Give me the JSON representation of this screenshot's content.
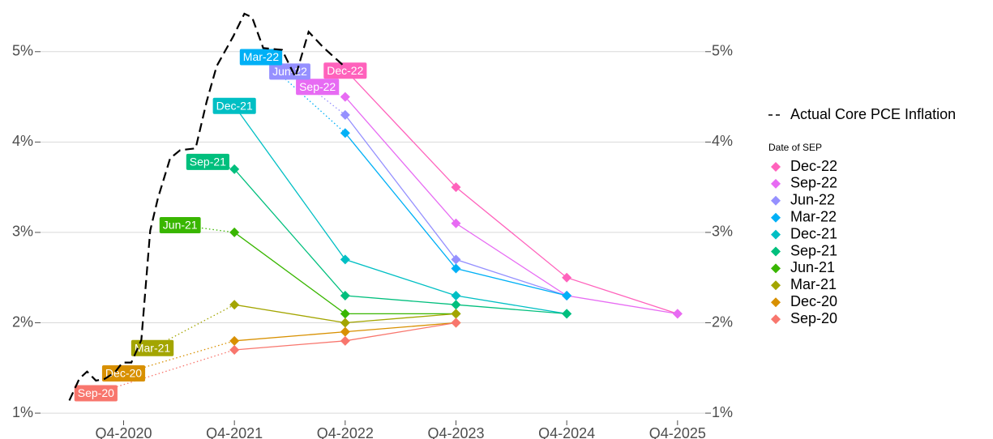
{
  "chart_data": {
    "type": "line",
    "xlim": [
      2020,
      2026
    ],
    "ylim": [
      0.92,
      5.5
    ],
    "xticks": [
      {
        "value": 2020.75,
        "label": "Q4-2020"
      },
      {
        "value": 2021.75,
        "label": "Q4-2021"
      },
      {
        "value": 2022.75,
        "label": "Q4-2022"
      },
      {
        "value": 2023.75,
        "label": "Q4-2023"
      },
      {
        "value": 2024.75,
        "label": "Q4-2024"
      },
      {
        "value": 2025.75,
        "label": "Q4-2025"
      }
    ],
    "yticks": [
      {
        "value": 1,
        "label": "1%"
      },
      {
        "value": 2,
        "label": "2%"
      },
      {
        "value": 3,
        "label": "3%"
      },
      {
        "value": 4,
        "label": "4%"
      },
      {
        "value": 5,
        "label": "5%"
      }
    ],
    "grid": true,
    "legend_title": "Date of SEP",
    "series": [
      {
        "name": "Actual Core PCE Inflation",
        "color": "#000000",
        "style": "dashed",
        "x": [
          2020.26,
          2020.35,
          2020.42,
          2020.5,
          2020.58,
          2020.67,
          2020.74,
          2020.82,
          2020.91,
          2020.99,
          2021.06,
          2021.17,
          2021.26,
          2021.4,
          2021.5,
          2021.59,
          2021.74,
          2021.84,
          2021.91,
          2022.01,
          2022.18,
          2022.3,
          2022.42,
          2022.55,
          2022.74
        ],
        "values": [
          1.14,
          1.38,
          1.46,
          1.36,
          1.38,
          1.45,
          1.56,
          1.56,
          1.81,
          3.02,
          3.38,
          3.82,
          3.91,
          3.93,
          4.45,
          4.84,
          5.17,
          5.42,
          5.38,
          5.04,
          5.02,
          4.72,
          5.22,
          5.05,
          4.84
        ]
      },
      {
        "name": "Dec-22",
        "color": "#FF62BC",
        "style": "projection",
        "x": [
          2022.75,
          2022.75,
          2023.75,
          2024.75,
          2025.75
        ],
        "values": [
          4.79,
          4.8,
          3.5,
          2.5,
          2.1
        ]
      },
      {
        "name": "Sep-22",
        "color": "#E76BF3",
        "style": "projection",
        "x": [
          2022.5,
          2022.75,
          2023.75,
          2024.75,
          2025.75
        ],
        "values": [
          4.61,
          4.5,
          3.1,
          2.3,
          2.1
        ]
      },
      {
        "name": "Jun-22",
        "color": "#9590FF",
        "style": "projection",
        "x": [
          2022.25,
          2022.75,
          2023.75,
          2024.75
        ],
        "values": [
          4.78,
          4.3,
          2.7,
          2.3
        ]
      },
      {
        "name": "Mar-22",
        "color": "#00B0F6",
        "style": "projection",
        "x": [
          2021.99,
          2022.75,
          2023.75,
          2024.75
        ],
        "values": [
          4.94,
          4.1,
          2.6,
          2.3
        ]
      },
      {
        "name": "Dec-21",
        "color": "#00BFC4",
        "style": "projection",
        "x": [
          2021.75,
          2021.75,
          2022.75,
          2023.75,
          2024.75
        ],
        "values": [
          4.4,
          4.4,
          2.7,
          2.3,
          2.1
        ]
      },
      {
        "name": "Sep-21",
        "color": "#00BF7D",
        "style": "projection",
        "x": [
          2021.51,
          2021.75,
          2022.75,
          2023.75,
          2024.75
        ],
        "values": [
          3.78,
          3.7,
          2.3,
          2.2,
          2.1
        ]
      },
      {
        "name": "Jun-21",
        "color": "#39B600",
        "style": "projection",
        "x": [
          2021.26,
          2021.75,
          2022.75,
          2023.75
        ],
        "values": [
          3.08,
          3.0,
          2.1,
          2.1
        ]
      },
      {
        "name": "Mar-21",
        "color": "#A3A500",
        "style": "projection",
        "x": [
          2021.01,
          2021.75,
          2022.75,
          2023.75
        ],
        "values": [
          1.72,
          2.2,
          2.0,
          2.1
        ]
      },
      {
        "name": "Dec-20",
        "color": "#D89000",
        "style": "projection",
        "x": [
          2020.75,
          2021.75,
          2022.75,
          2023.75
        ],
        "values": [
          1.44,
          1.8,
          1.9,
          2.0
        ]
      },
      {
        "name": "Sep-20",
        "color": "#F8766D",
        "style": "projection",
        "x": [
          2020.5,
          2021.75,
          2022.75,
          2023.75
        ],
        "values": [
          1.22,
          1.7,
          1.8,
          2.0
        ]
      }
    ]
  }
}
